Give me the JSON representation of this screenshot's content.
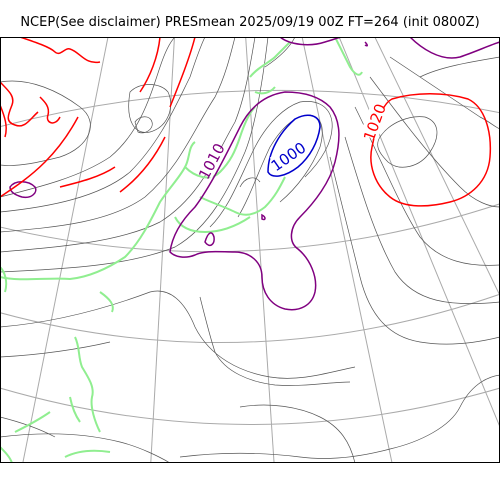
{
  "title": "NCEP(See disclaimer) PRESmean 2025/09/19 00Z FT=264 (init 0800Z)",
  "map": {
    "contour_labels": [
      {
        "text": "1010",
        "color": "#800080"
      },
      {
        "text": "1000",
        "color": "#0000cc"
      },
      {
        "text": "1020",
        "color": "#ff0000"
      }
    ],
    "colors": {
      "isobar": "#555555",
      "isobar_1000": "#0000cc",
      "isobar_1010": "#800080",
      "isobar_1020": "#ff0000",
      "coastline": "#90ee90",
      "graticule": "#aaaaaa",
      "frame": "#000000"
    }
  }
}
